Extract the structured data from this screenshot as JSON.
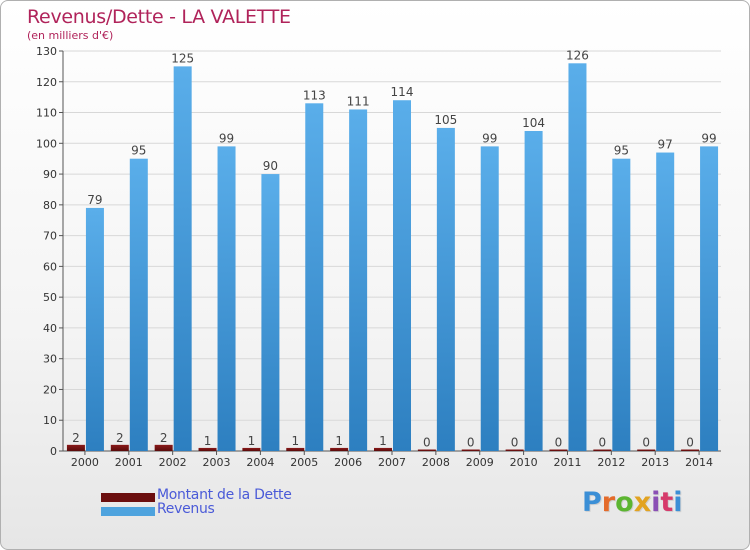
{
  "title": "Revenus/Dette - LA VALETTE",
  "subtitle": "(en milliers d'€)",
  "colors": {
    "title": "#b0235a",
    "dette": "#6b0e0e",
    "revenus": "#4ea3de",
    "legend_text": "#4a5ad8"
  },
  "legend": [
    {
      "label": "Montant de la Dette",
      "color": "#6b0e0e"
    },
    {
      "label": "Revenus",
      "color": "#4ea3de"
    }
  ],
  "logo": {
    "text": "Proxiti"
  },
  "chart_data": {
    "type": "bar",
    "categories": [
      "2000",
      "2001",
      "2002",
      "2003",
      "2004",
      "2005",
      "2006",
      "2007",
      "2008",
      "2009",
      "2010",
      "2011",
      "2012",
      "2013",
      "2014"
    ],
    "series": [
      {
        "name": "Montant de la Dette",
        "values": [
          2,
          2,
          2,
          1,
          1,
          1,
          1,
          1,
          0,
          0,
          0,
          0,
          0,
          0,
          0
        ]
      },
      {
        "name": "Revenus",
        "values": [
          79,
          95,
          125,
          99,
          90,
          113,
          111,
          114,
          105,
          99,
          104,
          126,
          95,
          97,
          99
        ]
      }
    ],
    "ylim": [
      0,
      130
    ],
    "yticks": [
      0,
      10,
      20,
      30,
      40,
      50,
      60,
      70,
      80,
      90,
      100,
      110,
      120,
      130
    ],
    "grid": true,
    "legend_position": "bottom-left"
  }
}
